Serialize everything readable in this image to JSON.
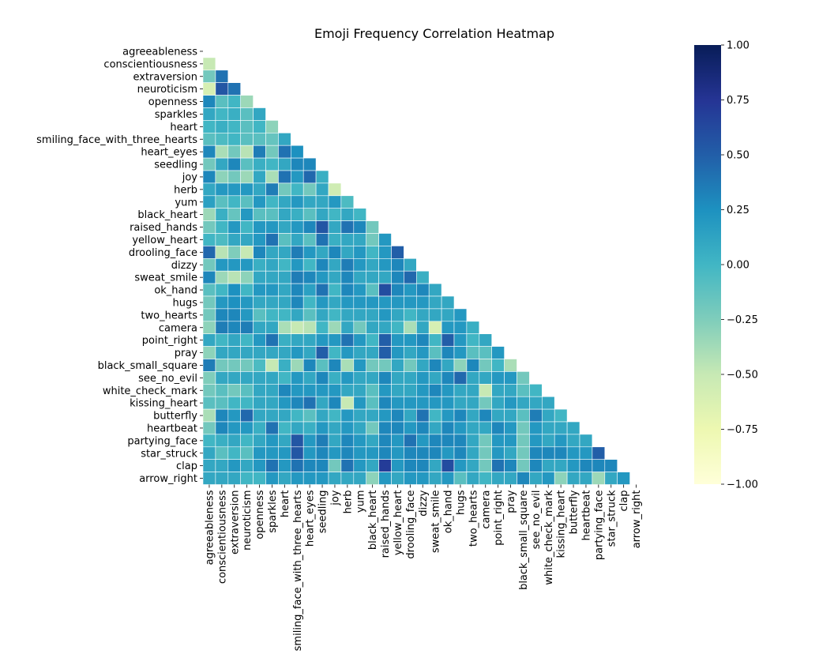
{
  "chart_data": {
    "type": "heatmap",
    "title": "Emoji Frequency Correlation Heatmap",
    "xlabel": "",
    "ylabel": "",
    "mask": "upper-triangle-including-diagonal",
    "colormap": "YlGnBu",
    "colorbar": {
      "min": -1.0,
      "max": 1.0,
      "ticks": [
        -1.0,
        -0.75,
        -0.5,
        -0.25,
        0.0,
        0.25,
        0.5,
        0.75,
        1.0
      ],
      "tick_labels": [
        "−1.00",
        "−0.75",
        "−0.50",
        "−0.25",
        "0.00",
        "0.25",
        "0.50",
        "0.75",
        "1.00"
      ],
      "stops": [
        {
          "v": -1.0,
          "color": "#ffffd9"
        },
        {
          "v": -0.75,
          "color": "#edf8b1"
        },
        {
          "v": -0.5,
          "color": "#c7e9b4"
        },
        {
          "v": -0.25,
          "color": "#7fcdbb"
        },
        {
          "v": 0.0,
          "color": "#41b6c4"
        },
        {
          "v": 0.25,
          "color": "#1d91c0"
        },
        {
          "v": 0.5,
          "color": "#225ea8"
        },
        {
          "v": 0.75,
          "color": "#253494"
        },
        {
          "v": 1.0,
          "color": "#081d58"
        }
      ]
    },
    "labels": [
      "agreeableness",
      "conscientiousness",
      "extraversion",
      "neuroticism",
      "openness",
      "sparkles",
      "heart",
      "smiling_face_with_three_hearts",
      "heart_eyes",
      "seedling",
      "joy",
      "herb",
      "yum",
      "black_heart",
      "raised_hands",
      "yellow_heart",
      "drooling_face",
      "dizzy",
      "sweat_smile",
      "ok_hand",
      "hugs",
      "two_hearts",
      "camera",
      "point_right",
      "pray",
      "black_small_square",
      "see_no_evil",
      "white_check_mark",
      "kissing_heart",
      "butterfly",
      "heartbeat",
      "partying_face",
      "star_struck",
      "clap",
      "arrow_right"
    ],
    "values": [
      [],
      [
        -0.5
      ],
      [
        -0.2,
        0.4
      ],
      [
        -0.6,
        0.55,
        0.4
      ],
      [
        0.3,
        -0.1,
        0.0,
        -0.35
      ],
      [
        0.1,
        0.0,
        0.05,
        -0.1,
        0.1
      ],
      [
        0.0,
        0.05,
        0.0,
        -0.1,
        0.0,
        -0.3
      ],
      [
        -0.1,
        -0.05,
        0.0,
        -0.1,
        -0.1,
        -0.15,
        0.1
      ],
      [
        0.3,
        -0.4,
        -0.2,
        -0.45,
        0.35,
        -0.2,
        0.4,
        0.25
      ],
      [
        -0.2,
        0.1,
        0.3,
        -0.1,
        0.05,
        0.0,
        0.1,
        0.3,
        0.3
      ],
      [
        0.3,
        -0.3,
        -0.2,
        -0.35,
        0.1,
        -0.4,
        0.4,
        0.2,
        0.45,
        0.05
      ],
      [
        0.1,
        0.2,
        0.2,
        0.2,
        0.1,
        0.35,
        -0.2,
        0.0,
        -0.2,
        0.1,
        -0.55
      ],
      [
        0.15,
        -0.1,
        0.0,
        -0.1,
        0.2,
        0.0,
        0.1,
        0.2,
        0.1,
        0.1,
        0.2,
        -0.05
      ],
      [
        -0.35,
        0.05,
        -0.15,
        0.2,
        -0.1,
        -0.1,
        0.1,
        0.05,
        -0.1,
        0.1,
        0.0,
        0.1,
        0.0
      ],
      [
        -0.2,
        0.0,
        0.2,
        0.0,
        0.2,
        0.2,
        0.1,
        0.2,
        0.3,
        0.55,
        0.1,
        0.4,
        0.3,
        -0.2
      ],
      [
        0.0,
        -0.05,
        0.1,
        0.1,
        0.2,
        0.4,
        -0.1,
        0.1,
        -0.1,
        0.4,
        0.05,
        0.1,
        0.1,
        -0.2,
        0.2
      ],
      [
        0.45,
        -0.45,
        -0.25,
        -0.5,
        0.3,
        0.1,
        0.1,
        0.35,
        0.2,
        0.1,
        0.3,
        0.1,
        0.2,
        0.0,
        0.2,
        0.5
      ],
      [
        -0.2,
        0.2,
        0.2,
        0.2,
        0.05,
        0.1,
        0.0,
        0.2,
        0.0,
        0.3,
        0.1,
        0.35,
        0.2,
        0.1,
        0.2,
        0.3,
        0.1
      ],
      [
        0.3,
        -0.35,
        -0.45,
        -0.3,
        0.1,
        0.1,
        0.1,
        0.35,
        0.3,
        0.2,
        0.1,
        0.3,
        0.1,
        0.1,
        0.1,
        0.3,
        0.45,
        0.05
      ],
      [
        -0.1,
        0.0,
        0.25,
        0.0,
        0.2,
        0.2,
        0.1,
        0.3,
        0.15,
        0.4,
        0.0,
        0.3,
        0.2,
        -0.1,
        0.6,
        0.3,
        0.2,
        0.3,
        0.1
      ],
      [
        -0.2,
        0.2,
        0.25,
        0.2,
        0.1,
        0.1,
        0.1,
        0.3,
        0.0,
        0.2,
        0.1,
        0.2,
        0.2,
        0.2,
        0.2,
        0.2,
        0.2,
        0.2,
        0.1,
        0.1
      ],
      [
        -0.2,
        0.3,
        0.3,
        0.2,
        -0.1,
        0.0,
        0.0,
        0.1,
        -0.1,
        0.1,
        0.0,
        0.1,
        0.1,
        0.1,
        0.2,
        0.1,
        0.0,
        0.1,
        0.1,
        0.1,
        0.2
      ],
      [
        -0.3,
        0.35,
        0.3,
        0.35,
        0.1,
        0.1,
        -0.4,
        -0.5,
        -0.45,
        0.0,
        -0.35,
        0.1,
        -0.2,
        0.1,
        0.1,
        0.0,
        -0.4,
        0.1,
        -0.6,
        0.2,
        0.2,
        0.05
      ],
      [
        0.1,
        0.0,
        0.1,
        0.0,
        0.2,
        0.4,
        0.05,
        0.1,
        0.1,
        0.2,
        0.2,
        0.4,
        0.2,
        0.0,
        0.5,
        0.2,
        0.2,
        0.3,
        0.0,
        0.5,
        0.2,
        0.0,
        0.1
      ],
      [
        -0.3,
        0.1,
        0.1,
        0.1,
        0.1,
        0.1,
        0.1,
        0.2,
        0.1,
        0.5,
        0.0,
        0.2,
        0.1,
        0.1,
        0.5,
        0.2,
        0.1,
        0.2,
        -0.1,
        0.3,
        0.2,
        -0.1,
        -0.1,
        0.2
      ],
      [
        0.35,
        -0.2,
        -0.2,
        -0.2,
        -0.05,
        -0.5,
        0.05,
        -0.35,
        0.3,
        -0.1,
        0.3,
        -0.4,
        0.2,
        -0.2,
        -0.2,
        0.1,
        -0.2,
        0.1,
        0.3,
        0.1,
        -0.3,
        0.3,
        -0.2,
        0.0,
        -0.4
      ],
      [
        -0.25,
        0.1,
        0.1,
        0.1,
        0.1,
        0.1,
        0.0,
        0.2,
        0.1,
        0.3,
        0.05,
        0.2,
        0.1,
        0.1,
        0.3,
        0.1,
        0.1,
        0.2,
        0.1,
        0.3,
        0.45,
        0.1,
        0.1,
        0.2,
        0.2,
        -0.2
      ],
      [
        -0.2,
        -0.1,
        -0.2,
        -0.1,
        0.1,
        0.1,
        0.3,
        0.2,
        0.2,
        0.2,
        0.2,
        0.1,
        0.1,
        -0.1,
        0.2,
        0.1,
        0.1,
        0.2,
        0.3,
        0.2,
        0.1,
        0.1,
        -0.5,
        0.1,
        0.1,
        -0.1,
        0.0
      ],
      [
        -0.1,
        -0.1,
        0.0,
        0.0,
        0.1,
        0.1,
        0.2,
        0.3,
        0.4,
        0.1,
        0.3,
        -0.5,
        0.2,
        -0.1,
        0.3,
        0.2,
        0.2,
        0.2,
        0.2,
        0.2,
        0.1,
        0.1,
        -0.2,
        0.1,
        0.2,
        0.1,
        0.1,
        0.1
      ],
      [
        -0.4,
        0.3,
        0.2,
        0.45,
        0.1,
        0.1,
        0.1,
        0.0,
        -0.1,
        0.1,
        0.0,
        0.2,
        0.1,
        0.1,
        0.2,
        0.3,
        0.1,
        0.4,
        0.0,
        0.2,
        0.3,
        0.1,
        0.3,
        0.1,
        0.1,
        -0.1,
        0.35,
        0.1,
        0.0
      ],
      [
        -0.2,
        0.3,
        0.2,
        0.2,
        0.05,
        0.4,
        0.0,
        0.1,
        0.05,
        0.2,
        0.1,
        0.2,
        0.1,
        -0.2,
        0.3,
        0.3,
        0.2,
        0.3,
        0.1,
        0.3,
        0.2,
        0.1,
        0.1,
        0.3,
        0.2,
        -0.2,
        0.2,
        0.1,
        0.1,
        0.1
      ],
      [
        0.0,
        0.05,
        0.1,
        0.0,
        0.1,
        0.2,
        0.1,
        0.55,
        0.2,
        0.35,
        0.1,
        0.3,
        0.2,
        0.1,
        0.3,
        0.2,
        0.4,
        0.2,
        0.3,
        0.3,
        0.3,
        0.1,
        -0.2,
        0.2,
        0.2,
        -0.2,
        0.2,
        0.1,
        0.2,
        0.1,
        0.1
      ],
      [
        0.1,
        -0.1,
        0.0,
        -0.1,
        0.2,
        0.2,
        0.2,
        0.55,
        0.2,
        0.3,
        0.2,
        0.3,
        0.2,
        0.2,
        0.3,
        0.2,
        0.3,
        0.3,
        0.3,
        0.2,
        0.3,
        0.1,
        -0.2,
        0.2,
        0.1,
        -0.2,
        0.3,
        0.3,
        0.3,
        0.2,
        0.2,
        0.5
      ],
      [
        0.1,
        0.1,
        0.2,
        0.1,
        0.2,
        0.4,
        0.2,
        0.4,
        0.3,
        0.3,
        -0.2,
        0.4,
        0.2,
        0.1,
        0.7,
        0.2,
        0.3,
        0.3,
        0.1,
        0.6,
        0.2,
        0.1,
        -0.2,
        0.4,
        0.3,
        -0.2,
        0.3,
        0.1,
        0.1,
        0.2,
        0.3,
        0.3,
        0.3
      ],
      [
        0.1,
        0.1,
        0.1,
        0.0,
        0.0,
        0.2,
        0.1,
        0.2,
        0.2,
        0.2,
        0.1,
        0.1,
        0.1,
        -0.3,
        0.2,
        0.1,
        0.2,
        0.2,
        0.1,
        0.2,
        -0.1,
        0.1,
        0.0,
        0.1,
        0.1,
        0.3,
        0.1,
        0.2,
        -0.3,
        0.1,
        0.1,
        -0.35,
        0.1,
        0.2
      ]
    ]
  }
}
